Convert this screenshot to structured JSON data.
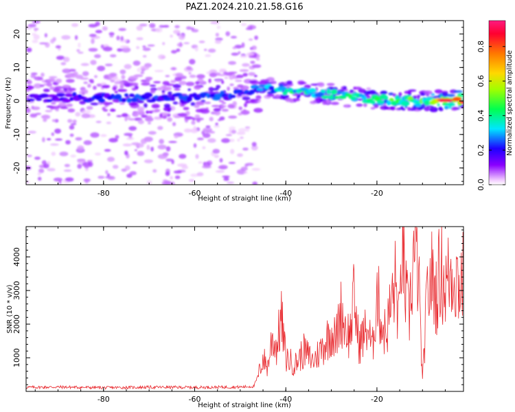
{
  "figure": {
    "title": "PAZ1.2024.210.21.58.G16"
  },
  "chart_data": [
    {
      "type": "heatmap",
      "title": "",
      "xlabel": "Height of straight line (km)",
      "ylabel": "Frequency (Hz)",
      "xlim": [
        -97,
        -1
      ],
      "ylim": [
        -25,
        24
      ],
      "xticks": [
        -80,
        -60,
        -40,
        -20
      ],
      "xticklabels": [
        "-80",
        "-60",
        "-40",
        "-20"
      ],
      "yticks": [
        -20,
        -10,
        0,
        10,
        20
      ],
      "yticklabels": [
        "-20",
        "-10",
        "0",
        "10",
        "20"
      ],
      "colorbar": {
        "label": "Normalized spectral amplitude",
        "range": [
          0,
          0.95
        ],
        "ticks": [
          0.0,
          0.2,
          0.4,
          0.6,
          0.8
        ],
        "ticklabels": [
          "0.0",
          "0.2",
          "0.4",
          "0.6",
          "0.8"
        ],
        "colormap": "gist_rainbow_r (white at zero)"
      },
      "ridge": {
        "description": "dominant spectral line near 0 Hz; noisy scatter at heights below -46 km",
        "height_km": [
          -95,
          -80,
          -60,
          -50,
          -45,
          -40,
          -30,
          -20,
          -10,
          -1
        ],
        "center_freq_hz": [
          1,
          1,
          1,
          2,
          4,
          3,
          2,
          0.5,
          0,
          0.3
        ],
        "peak_amplitude": [
          0.2,
          0.25,
          0.3,
          0.25,
          0.35,
          0.45,
          0.45,
          0.5,
          0.55,
          0.9
        ]
      },
      "grid": false
    },
    {
      "type": "line",
      "title": "",
      "xlabel": "Height of straight line (km)",
      "ylabel": "SNR (10 * v/v)",
      "xlim": [
        -97,
        -1
      ],
      "ylim": [
        0,
        4900
      ],
      "xticks": [
        -80,
        -60,
        -40,
        -20
      ],
      "xticklabels": [
        "-80",
        "-60",
        "-40",
        "-20"
      ],
      "yticks": [
        1000,
        2000,
        3000,
        4000
      ],
      "yticklabels": [
        "1000",
        "2000",
        "3000",
        "4000"
      ],
      "series": [
        {
          "color": "#e8262b",
          "x": [
            -97,
            -90,
            -80,
            -70,
            -60,
            -50,
            -47,
            -46,
            -45,
            -44,
            -43,
            -42,
            -41,
            -40,
            -38,
            -36,
            -34,
            -32,
            -30,
            -29,
            -28,
            -26,
            -25,
            -24,
            -22,
            -21,
            -20,
            -19,
            -18,
            -17,
            -16,
            -15,
            -14.5,
            -14,
            -13,
            -12,
            -11,
            -10,
            -9,
            -8,
            -7,
            -6,
            -5,
            -4,
            -3,
            -2,
            -1
          ],
          "y": [
            120,
            130,
            110,
            125,
            120,
            130,
            150,
            500,
            1000,
            700,
            1600,
            1300,
            2200,
            1000,
            800,
            1200,
            900,
            1300,
            1800,
            1500,
            2400,
            1600,
            2800,
            1400,
            1900,
            1200,
            3000,
            2000,
            1700,
            2500,
            3200,
            2000,
            4900,
            3300,
            2100,
            4000,
            3800,
            300,
            2800,
            3400,
            2900,
            3700,
            3100,
            3500,
            3600,
            3200,
            3400
          ]
        }
      ],
      "grid": false
    }
  ]
}
